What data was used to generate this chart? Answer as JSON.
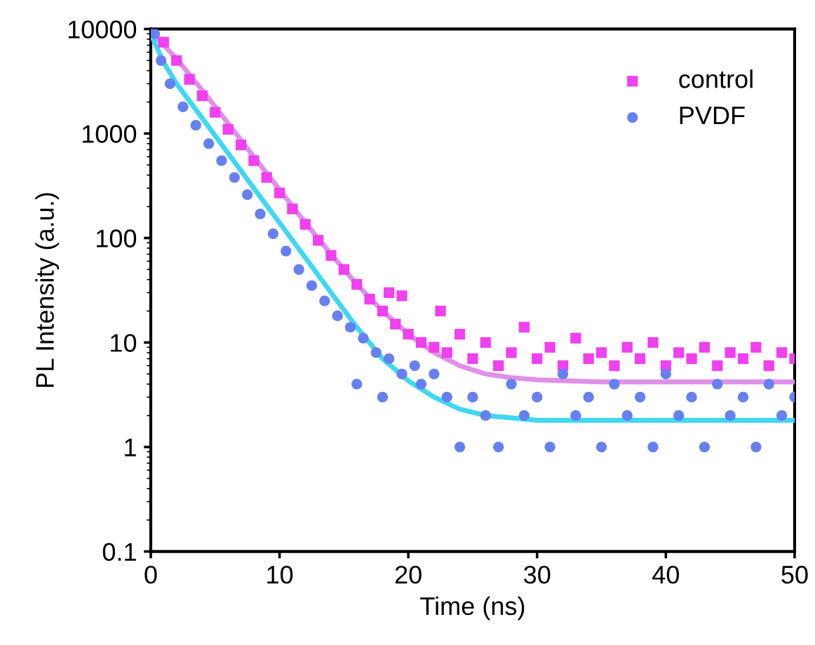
{
  "chart_data": {
    "type": "scatter",
    "xlabel": "Time (ns)",
    "ylabel": "PL Intensity (a.u.)",
    "log": "y",
    "grid": false,
    "legend": "top right",
    "xlim": [
      0,
      50
    ],
    "xticks": [
      0,
      10,
      20,
      30,
      40,
      50
    ],
    "ylim": [
      0.1,
      10000
    ],
    "yticks": [
      0.1,
      1,
      10,
      100,
      1000,
      10000
    ],
    "series": [
      {
        "name": "control",
        "marker": "square",
        "color": "#f040f0",
        "x": [
          1,
          2,
          3,
          4,
          5,
          6,
          7,
          8,
          9,
          10,
          11,
          12,
          13,
          14,
          15,
          16,
          17,
          18,
          18.5,
          19,
          19.5,
          20,
          21,
          22,
          22.5,
          23,
          24,
          25,
          26,
          27,
          28,
          29,
          30,
          31,
          32,
          33,
          34,
          35,
          36,
          37,
          38,
          39,
          40,
          41,
          42,
          43,
          44,
          45,
          46,
          47,
          48,
          49,
          50
        ],
        "values": [
          7500,
          5000,
          3300,
          2300,
          1600,
          1100,
          780,
          550,
          380,
          270,
          190,
          135,
          95,
          68,
          50,
          36,
          26,
          20,
          30,
          15,
          28,
          12,
          10,
          9,
          20,
          8,
          12,
          7,
          10,
          6,
          8,
          14,
          7,
          9,
          6,
          11,
          7,
          8,
          6,
          9,
          7,
          10,
          6,
          8,
          7,
          9,
          6,
          8,
          7,
          9,
          6,
          8,
          7
        ]
      },
      {
        "name": "PVDF",
        "marker": "circle",
        "color": "#6680f0",
        "x": [
          0.3,
          0.8,
          1.5,
          2.5,
          3.5,
          4.5,
          5.5,
          6.5,
          7.5,
          8.5,
          9.5,
          10.5,
          11.5,
          12.5,
          13.5,
          14.5,
          15.5,
          16,
          16.5,
          17.5,
          18,
          18.5,
          19.5,
          20.5,
          21,
          22,
          23,
          24,
          25,
          26,
          27,
          28,
          29,
          30,
          31,
          32,
          33,
          34,
          35,
          36,
          37,
          38,
          39,
          40,
          41,
          42,
          43,
          44,
          45,
          46,
          47,
          48,
          49,
          50
        ],
        "values": [
          9000,
          5000,
          3000,
          1800,
          1200,
          800,
          550,
          380,
          260,
          170,
          110,
          75,
          50,
          35,
          25,
          18,
          14,
          4,
          11,
          8,
          3,
          7,
          5,
          6,
          4,
          5,
          3,
          1,
          3,
          2,
          1,
          4,
          2,
          3,
          1,
          5,
          2,
          3,
          1,
          4,
          2,
          3,
          1,
          5,
          2,
          3,
          1,
          4,
          2,
          3,
          1,
          4,
          2,
          3
        ]
      },
      {
        "type": "line",
        "marker": "none",
        "line_style": "solid",
        "color": "#e090e8",
        "x": [
          0,
          2,
          4,
          6,
          8,
          10,
          12,
          14,
          16,
          18,
          20,
          22,
          24,
          26,
          28,
          30,
          35,
          40,
          50
        ],
        "values": [
          9500,
          5200,
          2600,
          1250,
          600,
          290,
          140,
          70,
          36,
          20,
          12,
          8,
          6,
          5,
          4.6,
          4.4,
          4.2,
          4.2,
          4.2
        ]
      },
      {
        "type": "line",
        "marker": "none",
        "line_style": "solid",
        "color": "#40d8f0",
        "x": [
          0,
          1,
          2,
          4,
          6,
          8,
          10,
          12,
          14,
          16,
          18,
          20,
          22,
          24,
          26,
          28,
          30,
          40,
          50
        ],
        "values": [
          9000,
          4800,
          3000,
          1400,
          650,
          300,
          140,
          65,
          30,
          14,
          7,
          4.3,
          3,
          2.3,
          2,
          1.9,
          1.8,
          1.8,
          1.8
        ]
      }
    ]
  }
}
